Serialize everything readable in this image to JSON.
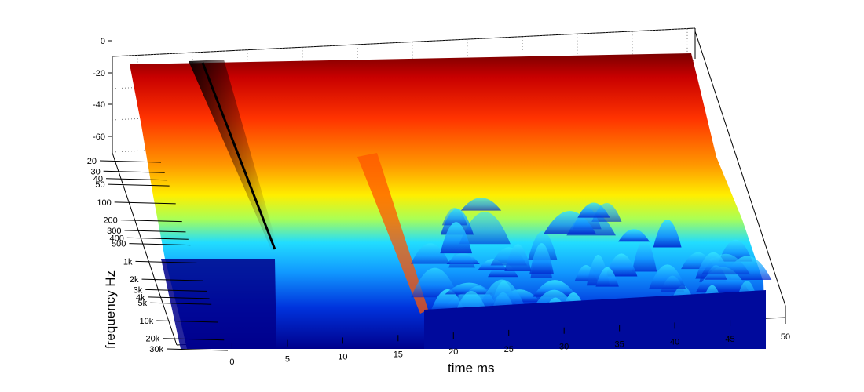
{
  "chart_data": {
    "type": "waterfall-surface",
    "title": "",
    "xlabel": "time   ms",
    "ylabel": "frequency   Hz",
    "zlabel": "",
    "x_ticks": [
      "0",
      "5",
      "10",
      "15",
      "20",
      "25",
      "30",
      "35",
      "40",
      "45",
      "50"
    ],
    "y_ticks": [
      "20",
      "30",
      "40",
      "50",
      "100",
      "200",
      "300",
      "400",
      "500",
      "1k",
      "2k",
      "3k",
      "4k",
      "5k",
      "10k",
      "20k",
      "30k"
    ],
    "z_ticks": [
      "0",
      "-20",
      "-40",
      "-60"
    ],
    "xlim": [
      -5,
      50
    ],
    "ylim": [
      20,
      30000
    ],
    "zlim": [
      -70,
      0
    ],
    "grid": true,
    "colormap": "jet",
    "features": [
      {
        "kind": "direct-impulse",
        "time_ms": 4
      },
      {
        "kind": "reflection",
        "time_ms": 17
      }
    ]
  }
}
